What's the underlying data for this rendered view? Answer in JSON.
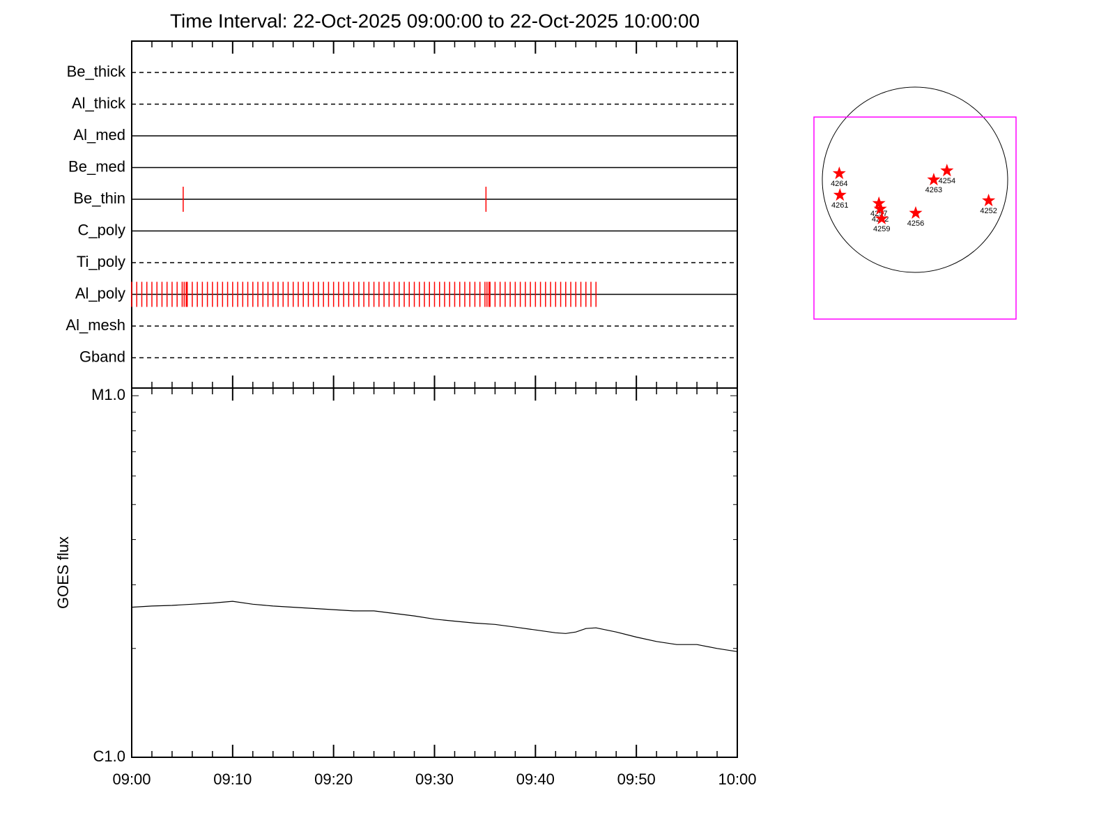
{
  "title": "Time Interval: 22-Oct-2025 09:00:00 to 22-Oct-2025 10:00:00",
  "chart_data": [
    {
      "type": "event",
      "color": "#ff0000",
      "xlim": [
        0,
        60
      ],
      "rows": [
        {
          "label": "Be_thick",
          "style": "dashed",
          "events": []
        },
        {
          "label": "Al_thick",
          "style": "dashed",
          "events": []
        },
        {
          "label": "Al_med",
          "style": "solid",
          "events": []
        },
        {
          "label": "Be_med",
          "style": "solid",
          "events": []
        },
        {
          "label": "Be_thin",
          "style": "solid",
          "events": [
            5.1,
            35.1
          ]
        },
        {
          "label": "C_poly",
          "style": "solid",
          "events": []
        },
        {
          "label": "Ti_poly",
          "style": "dashed",
          "events": []
        },
        {
          "label": "Al_poly",
          "style": "solid",
          "events": [
            0,
            0.5,
            1,
            1.5,
            2,
            2.5,
            3,
            3.5,
            4,
            4.5,
            5,
            5.2,
            5.4,
            5.5,
            6,
            6.5,
            7,
            7.5,
            8,
            8.5,
            9,
            9.5,
            10,
            10.5,
            11,
            11.5,
            12,
            12.5,
            13,
            13.5,
            14,
            14.5,
            15,
            15.5,
            16,
            16.5,
            17,
            17.5,
            18,
            18.5,
            19,
            19.5,
            20,
            20.5,
            21,
            21.5,
            22,
            22.5,
            23,
            23.5,
            24,
            24.5,
            25,
            25.5,
            26,
            26.5,
            27,
            27.5,
            28,
            28.5,
            29,
            29.5,
            30,
            30.5,
            31,
            31.5,
            32,
            32.5,
            33,
            33.5,
            34,
            34.5,
            35,
            35.2,
            35.4,
            35.5,
            36,
            36.5,
            37,
            37.5,
            38,
            38.5,
            39,
            39.5,
            40,
            40.5,
            41,
            41.5,
            42,
            42.5,
            43,
            43.5,
            44,
            44.5,
            45,
            45.5,
            46
          ]
        },
        {
          "label": "Al_mesh",
          "style": "dashed",
          "events": []
        },
        {
          "label": "Gband",
          "style": "dashed",
          "events": []
        }
      ]
    },
    {
      "type": "line",
      "y_label": "GOES flux",
      "color": "#000000",
      "log_y": true,
      "x": [
        0,
        2,
        4,
        6,
        8,
        10,
        12,
        14,
        16,
        18,
        20,
        22,
        24,
        26,
        28,
        30,
        32,
        34,
        36,
        38,
        40,
        42,
        43,
        44,
        45,
        46,
        48,
        50,
        52,
        54,
        56,
        58,
        60
      ],
      "values": [
        2.6e-06,
        2.62e-06,
        2.63e-06,
        2.65e-06,
        2.67e-06,
        2.7e-06,
        2.65e-06,
        2.62e-06,
        2.6e-06,
        2.58e-06,
        2.56e-06,
        2.54e-06,
        2.54e-06,
        2.5e-06,
        2.46e-06,
        2.41e-06,
        2.38e-06,
        2.35e-06,
        2.33e-06,
        2.29e-06,
        2.25e-06,
        2.21e-06,
        2.2e-06,
        2.22e-06,
        2.27e-06,
        2.28e-06,
        2.22e-06,
        2.15e-06,
        2.09e-06,
        2.05e-06,
        2.05e-06,
        2e-06,
        1.96e-06
      ],
      "xlim": [
        0,
        60
      ],
      "xticks": [
        {
          "value": 0,
          "label": "09:00"
        },
        {
          "value": 10,
          "label": "09:10"
        },
        {
          "value": 20,
          "label": "09:20"
        },
        {
          "value": 30,
          "label": "09:30"
        },
        {
          "value": 40,
          "label": "09:40"
        },
        {
          "value": 50,
          "label": "09:50"
        },
        {
          "value": 60,
          "label": "10:00"
        }
      ],
      "minor_xticks": [
        2,
        4,
        6,
        8,
        12,
        14,
        16,
        18,
        22,
        24,
        26,
        28,
        32,
        34,
        36,
        38,
        42,
        44,
        46,
        48,
        52,
        54,
        56,
        58
      ],
      "ylim": [
        1e-06,
        1e-05
      ],
      "yticks": [
        {
          "value": 1e-06,
          "label": "C1.0"
        },
        {
          "value": 1e-05,
          "label": "M1.0"
        }
      ],
      "minor_yticks": [
        2e-06,
        3e-06,
        4e-06,
        5e-06,
        6e-06,
        7e-06,
        8e-06,
        9e-06
      ]
    },
    {
      "type": "scatter",
      "color": "#ff0000",
      "frame_color": "#ff00ff",
      "labels": [
        "4264",
        "4261",
        "4257",
        "4262",
        "4259",
        "4256",
        "4263",
        "4254",
        "4252"
      ],
      "x": [
        -787,
        -780,
        -375,
        -361,
        -346,
        7,
        195,
        332,
        765
      ],
      "y": [
        65,
        -159,
        -245,
        -303,
        -404,
        -346,
        0,
        94,
        -217
      ],
      "xlim": [
        -1050,
        1050
      ],
      "ylim": [
        -1445,
        650
      ]
    }
  ]
}
